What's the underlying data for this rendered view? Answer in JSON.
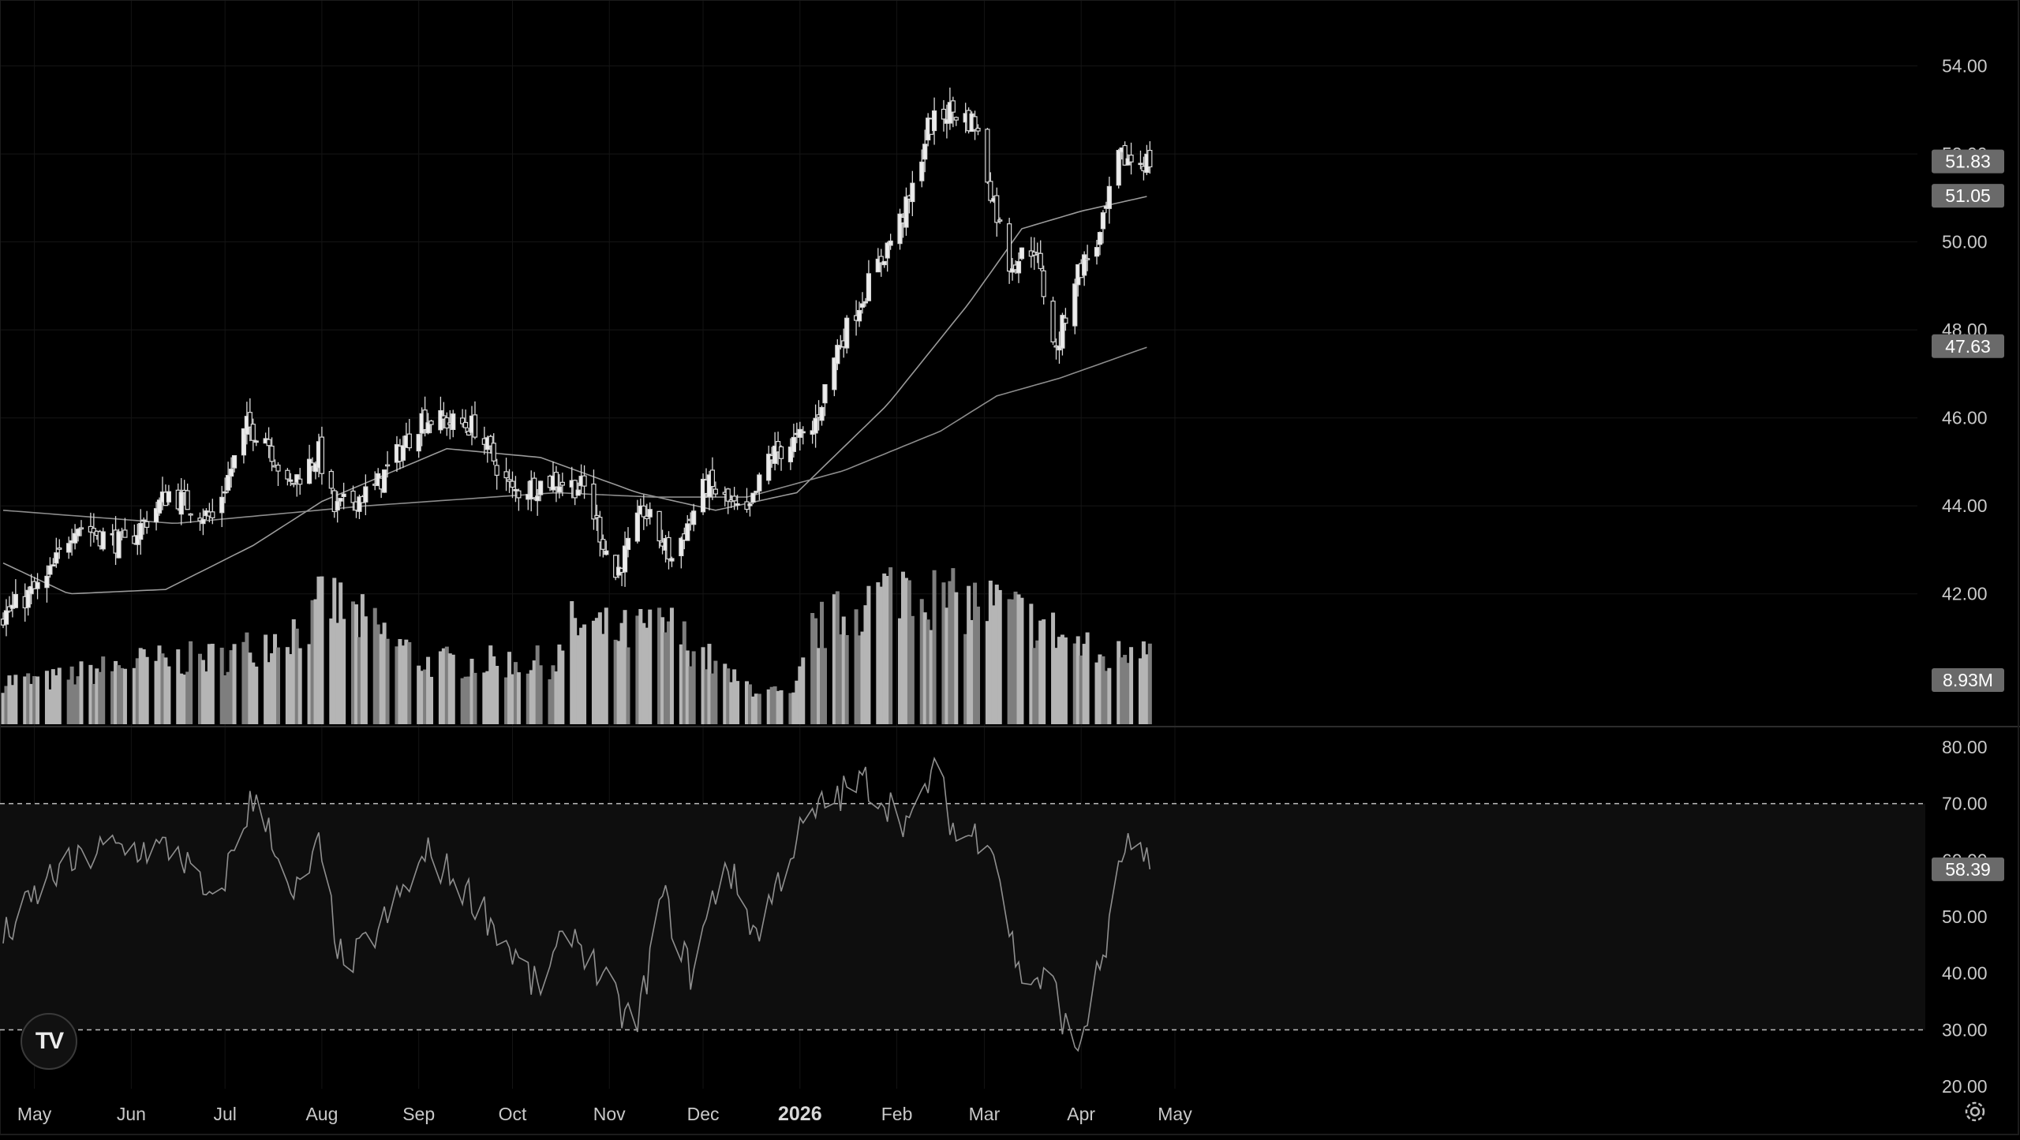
{
  "chart_data": {
    "type": "candlestick",
    "price_axis": {
      "ticks": [
        "54.00",
        "52.00",
        "50.00",
        "48.00",
        "46.00",
        "44.00",
        "42.00"
      ],
      "range": [
        39.0,
        55.5
      ]
    },
    "time_axis": {
      "labels": [
        "May",
        "Jun",
        "Jul",
        "Aug",
        "Sep",
        "Oct",
        "Nov",
        "Dec",
        "2026",
        "Feb",
        "Mar",
        "Apr",
        "May"
      ],
      "bold_label": "2026"
    },
    "price_key_points": [
      {
        "date": "2025-04-21",
        "close": 41.5
      },
      {
        "date": "2025-05-05",
        "close": 42.3
      },
      {
        "date": "2025-05-14",
        "close": 43.6
      },
      {
        "date": "2025-05-30",
        "close": 43.1
      },
      {
        "date": "2025-06-13",
        "close": 44.3
      },
      {
        "date": "2025-06-27",
        "close": 43.7
      },
      {
        "date": "2025-07-08",
        "close": 45.8
      },
      {
        "date": "2025-07-14",
        "close": 45.6
      },
      {
        "date": "2025-07-21",
        "close": 44.4
      },
      {
        "date": "2025-07-31",
        "close": 45.2
      },
      {
        "date": "2025-08-05",
        "close": 43.9
      },
      {
        "date": "2025-08-18",
        "close": 44.4
      },
      {
        "date": "2025-09-02",
        "close": 46.0
      },
      {
        "date": "2025-09-19",
        "close": 45.8
      },
      {
        "date": "2025-10-01",
        "close": 44.3
      },
      {
        "date": "2025-10-14",
        "close": 44.6
      },
      {
        "date": "2025-10-24",
        "close": 44.4
      },
      {
        "date": "2025-11-03",
        "close": 42.4
      },
      {
        "date": "2025-11-12",
        "close": 43.9
      },
      {
        "date": "2025-11-21",
        "close": 42.8
      },
      {
        "date": "2025-12-02",
        "close": 44.5
      },
      {
        "date": "2025-12-15",
        "close": 43.7
      },
      {
        "date": "2025-12-22",
        "close": 45.1
      },
      {
        "date": "2026-01-05",
        "close": 45.7
      },
      {
        "date": "2026-01-13",
        "close": 47.6
      },
      {
        "date": "2026-01-22",
        "close": 48.9
      },
      {
        "date": "2026-02-05",
        "close": 50.9
      },
      {
        "date": "2026-02-11",
        "close": 52.6
      },
      {
        "date": "2026-02-18",
        "close": 53.0
      },
      {
        "date": "2026-02-26",
        "close": 52.7
      },
      {
        "date": "2026-03-03",
        "close": 51.2
      },
      {
        "date": "2026-03-09",
        "close": 49.5
      },
      {
        "date": "2026-03-17",
        "close": 49.9
      },
      {
        "date": "2026-03-24",
        "close": 47.5
      },
      {
        "date": "2026-03-30",
        "close": 49.2
      },
      {
        "date": "2026-04-07",
        "close": 50.1
      },
      {
        "date": "2026-04-13",
        "close": 51.9
      },
      {
        "date": "2026-04-23",
        "close": 51.83
      }
    ],
    "moving_averages": [
      {
        "label": "51.05",
        "points": [
          {
            "date": "2025-04-21",
            "value": 42.7
          },
          {
            "date": "2025-05-12",
            "value": 42.0
          },
          {
            "date": "2025-06-12",
            "value": 42.1
          },
          {
            "date": "2025-07-10",
            "value": 43.1
          },
          {
            "date": "2025-08-01",
            "value": 44.1
          },
          {
            "date": "2025-09-10",
            "value": 45.3
          },
          {
            "date": "2025-10-10",
            "value": 45.1
          },
          {
            "date": "2025-11-10",
            "value": 44.3
          },
          {
            "date": "2025-12-05",
            "value": 43.9
          },
          {
            "date": "2025-12-31",
            "value": 44.3
          },
          {
            "date": "2026-01-29",
            "value": 46.3
          },
          {
            "date": "2026-02-24",
            "value": 48.6
          },
          {
            "date": "2026-03-13",
            "value": 50.3
          },
          {
            "date": "2026-04-01",
            "value": 50.7
          },
          {
            "date": "2026-04-23",
            "value": 51.05
          }
        ]
      },
      {
        "label": "47.63",
        "points": [
          {
            "date": "2025-04-21",
            "value": 43.9
          },
          {
            "date": "2025-06-15",
            "value": 43.6
          },
          {
            "date": "2025-08-15",
            "value": 44.0
          },
          {
            "date": "2025-10-15",
            "value": 44.3
          },
          {
            "date": "2025-11-15",
            "value": 44.2
          },
          {
            "date": "2025-12-15",
            "value": 44.2
          },
          {
            "date": "2026-01-15",
            "value": 44.8
          },
          {
            "date": "2026-02-15",
            "value": 45.7
          },
          {
            "date": "2026-03-05",
            "value": 46.5
          },
          {
            "date": "2026-03-25",
            "value": 46.9
          },
          {
            "date": "2026-04-23",
            "value": 47.63
          }
        ]
      }
    ],
    "volume_key_points": [
      {
        "date": "2025-05-05",
        "volume": 4.2
      },
      {
        "date": "2025-06-02",
        "volume": 6.0
      },
      {
        "date": "2025-07-01",
        "volume": 6.5
      },
      {
        "date": "2025-07-30",
        "volume": 10.0
      },
      {
        "date": "2025-08-01",
        "volume": 12.5
      },
      {
        "date": "2025-09-03",
        "volume": 6.0
      },
      {
        "date": "2025-10-15",
        "volume": 6.0
      },
      {
        "date": "2025-10-20",
        "volume": 9.5
      },
      {
        "date": "2025-11-05",
        "volume": 8.8
      },
      {
        "date": "2025-11-20",
        "volume": 9.5
      },
      {
        "date": "2025-12-12",
        "volume": 4.0
      },
      {
        "date": "2025-12-30",
        "volume": 2.5
      },
      {
        "date": "2026-01-05",
        "volume": 9.0
      },
      {
        "date": "2026-02-05",
        "volume": 14.0
      },
      {
        "date": "2026-02-15",
        "volume": 12.0
      },
      {
        "date": "2026-03-05",
        "volume": 11.5
      },
      {
        "date": "2026-03-20",
        "volume": 9.5
      },
      {
        "date": "2026-04-10",
        "volume": 6.0
      },
      {
        "date": "2026-04-23",
        "volume": 8.93
      }
    ],
    "rsi": {
      "ticks": [
        "80.00",
        "70.00",
        "60.00",
        "50.00",
        "40.00",
        "30.00",
        "20.00"
      ],
      "range": [
        20,
        80
      ],
      "band": [
        30,
        70
      ],
      "key_points": [
        {
          "date": "2025-04-21",
          "value": 46
        },
        {
          "date": "2025-05-06",
          "value": 57
        },
        {
          "date": "2025-05-23",
          "value": 62
        },
        {
          "date": "2025-06-16",
          "value": 62
        },
        {
          "date": "2025-06-27",
          "value": 51
        },
        {
          "date": "2025-07-09",
          "value": 70
        },
        {
          "date": "2025-07-15",
          "value": 67
        },
        {
          "date": "2025-07-22",
          "value": 52
        },
        {
          "date": "2025-07-31",
          "value": 62
        },
        {
          "date": "2025-08-08",
          "value": 40
        },
        {
          "date": "2025-08-22",
          "value": 50
        },
        {
          "date": "2025-09-04",
          "value": 61
        },
        {
          "date": "2025-09-12",
          "value": 57
        },
        {
          "date": "2025-09-22",
          "value": 51
        },
        {
          "date": "2025-10-09",
          "value": 37
        },
        {
          "date": "2025-10-20",
          "value": 48
        },
        {
          "date": "2025-11-05",
          "value": 33
        },
        {
          "date": "2025-11-10",
          "value": 31
        },
        {
          "date": "2025-11-18",
          "value": 54
        },
        {
          "date": "2025-11-27",
          "value": 40
        },
        {
          "date": "2025-12-08",
          "value": 60
        },
        {
          "date": "2025-12-18",
          "value": 47
        },
        {
          "date": "2025-12-31",
          "value": 64
        },
        {
          "date": "2026-01-09",
          "value": 70
        },
        {
          "date": "2026-01-22",
          "value": 74
        },
        {
          "date": "2026-02-06",
          "value": 66
        },
        {
          "date": "2026-02-13",
          "value": 77
        },
        {
          "date": "2026-02-20",
          "value": 64
        },
        {
          "date": "2026-03-03",
          "value": 65
        },
        {
          "date": "2026-03-12",
          "value": 40
        },
        {
          "date": "2026-03-23",
          "value": 38
        },
        {
          "date": "2026-03-30",
          "value": 25
        },
        {
          "date": "2026-04-09",
          "value": 45
        },
        {
          "date": "2026-04-15",
          "value": 63
        },
        {
          "date": "2026-04-20",
          "value": 60
        },
        {
          "date": "2026-04-23",
          "value": 58.39
        }
      ]
    }
  },
  "badges": {
    "last_price": "51.83",
    "ma_fast": "51.05",
    "ma_slow": "47.63",
    "volume": "8.93M",
    "rsi": "58.39"
  },
  "logo_text": "TV",
  "icons": {
    "settings": "gear-icon",
    "logo": "tradingview-logo-icon"
  }
}
